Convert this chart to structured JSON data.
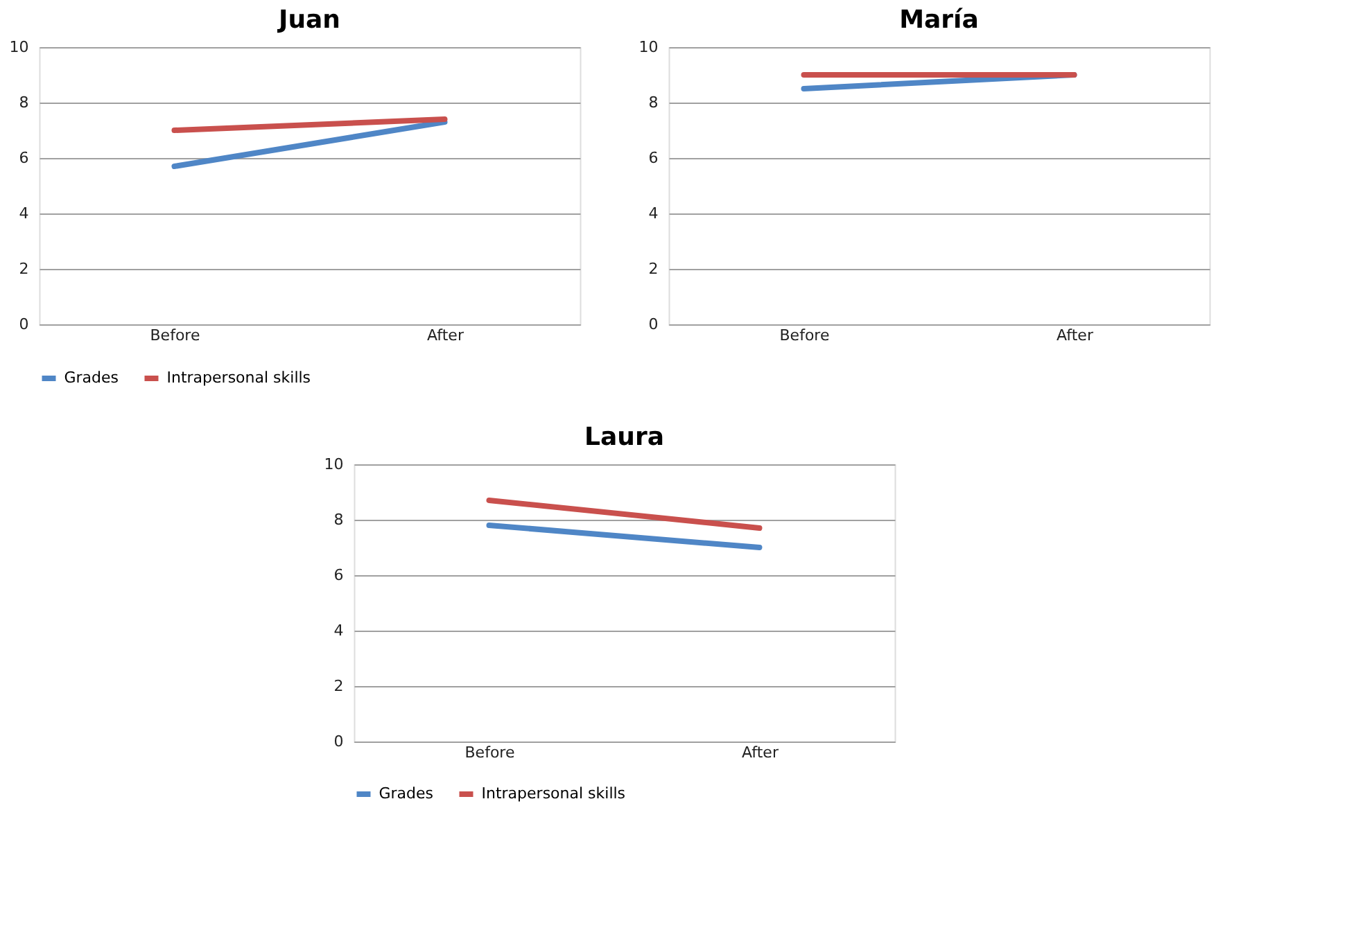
{
  "chart_data": [
    {
      "type": "line",
      "title": "Juan",
      "categories": [
        "Before",
        "After"
      ],
      "series": [
        {
          "name": "Grades",
          "color": "#4f86c6",
          "values": [
            5.7,
            7.3
          ]
        },
        {
          "name": "Intrapersonal skills",
          "color": "#c9504d",
          "values": [
            7.0,
            7.4
          ]
        }
      ],
      "ylim": [
        0,
        10
      ],
      "yticks": [
        0,
        2,
        4,
        6,
        8,
        10
      ],
      "grid": "y",
      "legend": "bottom",
      "marker": "none"
    },
    {
      "type": "line",
      "title": "María",
      "categories": [
        "Before",
        "After"
      ],
      "series": [
        {
          "name": "Grades",
          "color": "#4f86c6",
          "values": [
            8.5,
            9.0
          ]
        },
        {
          "name": "Intrapersonal skills",
          "color": "#c9504d",
          "values": [
            9.0,
            9.0
          ]
        }
      ],
      "ylim": [
        0,
        10
      ],
      "yticks": [
        0,
        2,
        4,
        6,
        8,
        10
      ],
      "grid": "y",
      "legend": "bottom",
      "marker": "none"
    },
    {
      "type": "line",
      "title": "Laura",
      "categories": [
        "Before",
        "After"
      ],
      "series": [
        {
          "name": "Grades",
          "color": "#4f86c6",
          "values": [
            7.8,
            7.0
          ]
        },
        {
          "name": "Intrapersonal skills",
          "color": "#c9504d",
          "values": [
            8.7,
            7.7
          ]
        }
      ],
      "ylim": [
        0,
        10
      ],
      "yticks": [
        0,
        2,
        4,
        6,
        8,
        10
      ],
      "grid": "y",
      "legend": "bottom",
      "marker": "none"
    }
  ]
}
